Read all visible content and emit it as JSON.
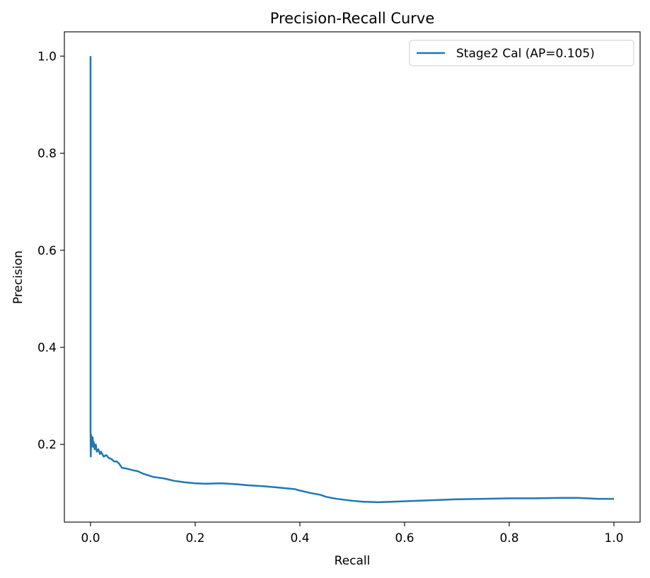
{
  "chart_data": {
    "type": "line",
    "title": "Precision-Recall Curve",
    "xlabel": "Recall",
    "ylabel": "Precision",
    "xlim": [
      -0.05,
      1.05
    ],
    "ylim": [
      0.04,
      1.05
    ],
    "xticks": [
      0.0,
      0.2,
      0.4,
      0.6,
      0.8,
      1.0
    ],
    "xtick_labels": [
      "0.0",
      "0.2",
      "0.4",
      "0.6",
      "0.8",
      "1.0"
    ],
    "yticks": [
      0.2,
      0.4,
      0.6,
      0.8,
      1.0
    ],
    "ytick_labels": [
      "0.2",
      "0.4",
      "0.6",
      "0.8",
      "1.0"
    ],
    "grid": false,
    "legend_position": "top-right",
    "series": [
      {
        "name": "Stage2 Cal (AP=0.105)",
        "color": "#1f77b4",
        "x": [
          0.0,
          0.0,
          0.0005,
          0.001,
          0.0015,
          0.002,
          0.003,
          0.004,
          0.005,
          0.006,
          0.008,
          0.01,
          0.012,
          0.015,
          0.018,
          0.02,
          0.025,
          0.03,
          0.035,
          0.04,
          0.045,
          0.05,
          0.055,
          0.06,
          0.07,
          0.08,
          0.09,
          0.1,
          0.12,
          0.14,
          0.16,
          0.18,
          0.2,
          0.22,
          0.25,
          0.28,
          0.3,
          0.33,
          0.36,
          0.39,
          0.4,
          0.42,
          0.44,
          0.45,
          0.47,
          0.5,
          0.52,
          0.55,
          0.58,
          0.6,
          0.65,
          0.7,
          0.75,
          0.8,
          0.85,
          0.9,
          0.93,
          0.95,
          0.97,
          1.0
        ],
        "y": [
          1.0,
          0.23,
          0.175,
          0.22,
          0.195,
          0.21,
          0.2,
          0.215,
          0.195,
          0.205,
          0.19,
          0.2,
          0.185,
          0.19,
          0.18,
          0.185,
          0.175,
          0.178,
          0.172,
          0.17,
          0.165,
          0.165,
          0.16,
          0.152,
          0.15,
          0.147,
          0.145,
          0.14,
          0.133,
          0.13,
          0.125,
          0.122,
          0.12,
          0.119,
          0.12,
          0.118,
          0.116,
          0.114,
          0.111,
          0.108,
          0.105,
          0.1,
          0.096,
          0.092,
          0.088,
          0.084,
          0.082,
          0.081,
          0.082,
          0.083,
          0.085,
          0.087,
          0.088,
          0.089,
          0.089,
          0.09,
          0.09,
          0.089,
          0.088,
          0.088
        ]
      }
    ]
  }
}
